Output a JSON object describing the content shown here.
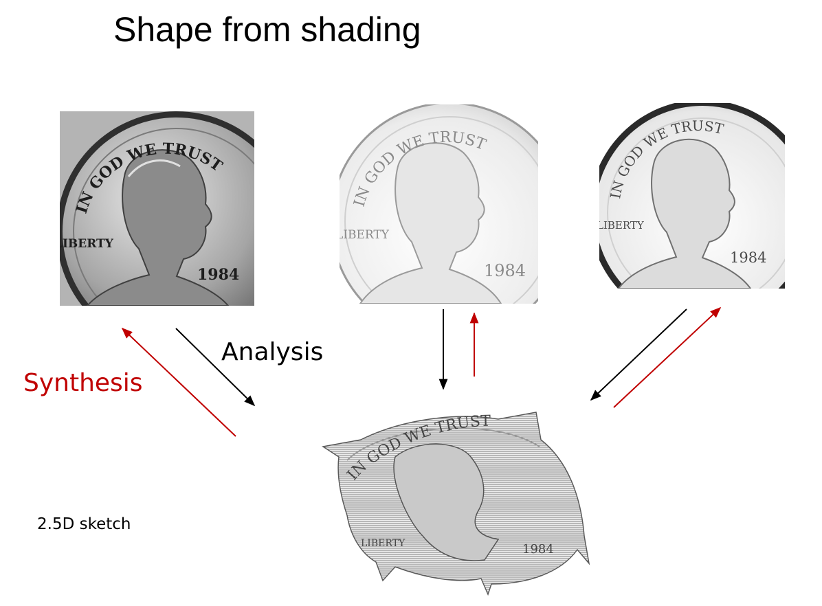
{
  "slide": {
    "title": "Shape from shading"
  },
  "labels": {
    "analysis": "Analysis",
    "synthesis": "Synthesis",
    "sketch": "2.5D  sketch"
  },
  "coins": [
    {
      "motto": "IN GOD WE TRUST",
      "liberty": "LIBERTY",
      "year": "1984",
      "style": "photograph"
    },
    {
      "motto": "IN GOD WE TRUST",
      "liberty": "LIBERTY",
      "year": "1984",
      "style": "rendered-bright"
    },
    {
      "motto": "IN GOD WE TRUST",
      "liberty": "LIBERTY",
      "year": "1984",
      "style": "rendered-frontal"
    }
  ],
  "relief": {
    "motto": "IN GOD WE TRUST",
    "liberty": "LIBERTY",
    "year": "1984"
  },
  "colors": {
    "analysis_arrow": "#000000",
    "synthesis_arrow": "#c00000",
    "synthesis_text": "#c00000"
  }
}
